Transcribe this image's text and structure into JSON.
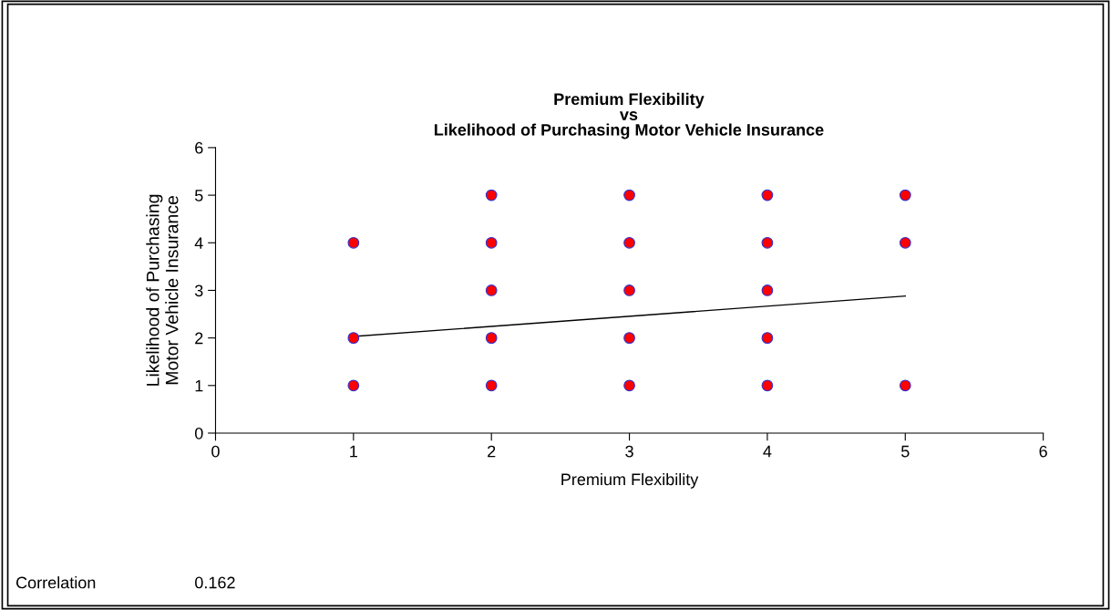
{
  "chart_data": {
    "type": "scatter",
    "title": "Premium Flexibility\nvs\nLikelihood of Purchasing Motor Vehicle Insurance",
    "xlabel": "Premium Flexibility",
    "ylabel": "Likelihood of Purchasing\nMotor Vehicle Insurance",
    "series": [
      {
        "color": "#ff0000",
        "marker": "circle",
        "x": [
          1,
          1,
          1,
          2,
          2,
          2,
          2,
          2,
          3,
          3,
          3,
          3,
          3,
          4,
          4,
          4,
          4,
          4,
          5,
          5,
          5
        ],
        "values": [
          4,
          2,
          1,
          5,
          4,
          3,
          2,
          1,
          5,
          4,
          3,
          2,
          1,
          5,
          4,
          3,
          2,
          1,
          5,
          4,
          1
        ]
      },
      {
        "type": "line",
        "marker": "none",
        "color": "#000000",
        "x": [
          1,
          5
        ],
        "values": [
          2.03,
          2.88
        ]
      }
    ],
    "xlim": [
      0,
      6
    ],
    "xticks": [
      0,
      1,
      2,
      3,
      4,
      5,
      6
    ],
    "ylim": [
      0,
      6
    ],
    "yticks": [
      0,
      1,
      2,
      3,
      4,
      5,
      6
    ],
    "grid": false,
    "legend": false,
    "annotations": [
      "Correlation",
      "0.162"
    ]
  }
}
